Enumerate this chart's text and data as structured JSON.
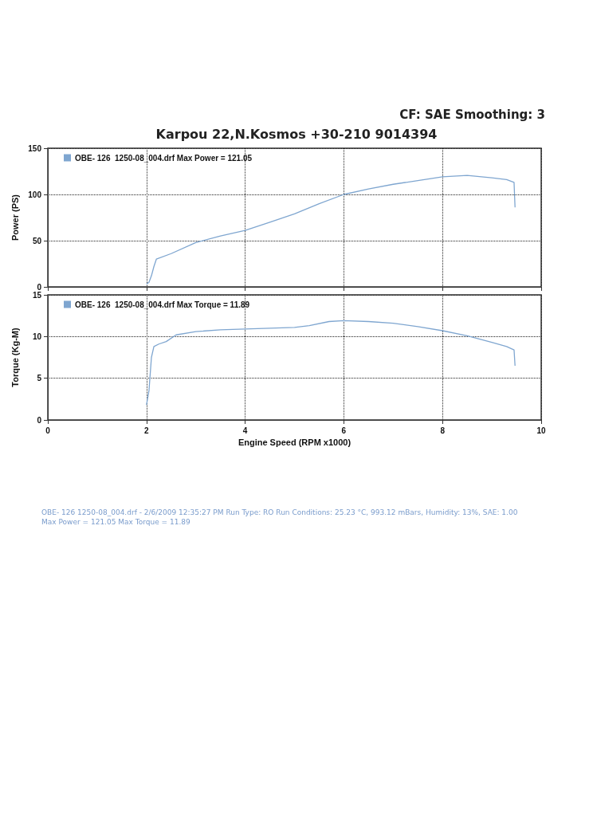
{
  "chart_data": [
    {
      "type": "line",
      "title": "CF: SAE  Smoothing: 3",
      "subtitle": "Karpou 22,N.Kosmos +30-210 9014394",
      "ylabel": "Power (PS)",
      "xlim": [
        0,
        10
      ],
      "xticks": [
        0,
        2,
        4,
        6,
        8,
        10
      ],
      "ylim": [
        0,
        150
      ],
      "yticks": [
        0,
        50,
        100,
        150
      ],
      "grid": true,
      "line_style": "solid",
      "legend": "top left",
      "tick_labels": "y",
      "series": [
        {
          "name": "OBE- 126  1250-08_004.drf Max Power = 121.05",
          "color": "#7fa6d0",
          "x": [
            2.0,
            2.05,
            2.1,
            2.15,
            2.2,
            2.5,
            3.0,
            3.5,
            4.0,
            4.5,
            5.0,
            5.5,
            6.0,
            6.5,
            7.0,
            7.5,
            8.0,
            8.5,
            9.0,
            9.3,
            9.45,
            9.47
          ],
          "values": [
            3,
            5,
            12,
            22,
            30,
            36,
            48,
            55,
            61,
            70,
            79,
            90,
            100,
            106,
            111,
            115,
            119,
            120.5,
            118,
            116,
            113,
            86
          ]
        }
      ]
    },
    {
      "type": "line",
      "xlabel": "Engine Speed (RPM x1000)",
      "ylabel": "Torque (Kg-M)",
      "xlim": [
        0,
        10
      ],
      "xticks": [
        0,
        2,
        4,
        6,
        8,
        10
      ],
      "ylim": [
        0,
        15
      ],
      "yticks": [
        0,
        5,
        10,
        15
      ],
      "grid": true,
      "line_style": "solid",
      "legend": "top left",
      "annotations": [
        "OBE- 126  1250-08_004.drf - 2/6/2009 12:35:27 PM  Run Type: RO  Run Conditions: 25.23 °C, 993.12 mBars,  Humidity: 13%, SAE: 1.00",
        "Max Power = 121.05  Max Torque = 11.89"
      ],
      "series": [
        {
          "name": "OBE- 126  1250-08_004.drf Max Torque = 11.89",
          "color": "#7fa6d0",
          "x": [
            2.0,
            2.05,
            2.1,
            2.15,
            2.25,
            2.4,
            2.6,
            3.0,
            3.5,
            4.0,
            4.5,
            5.0,
            5.3,
            5.7,
            6.0,
            6.5,
            7.0,
            7.5,
            8.0,
            8.5,
            9.0,
            9.3,
            9.45,
            9.47
          ],
          "values": [
            1.8,
            3.5,
            7.5,
            8.8,
            9.1,
            9.4,
            10.2,
            10.6,
            10.8,
            10.9,
            11.0,
            11.1,
            11.3,
            11.8,
            11.9,
            11.8,
            11.6,
            11.2,
            10.7,
            10.1,
            9.3,
            8.8,
            8.4,
            6.5
          ]
        }
      ]
    }
  ]
}
